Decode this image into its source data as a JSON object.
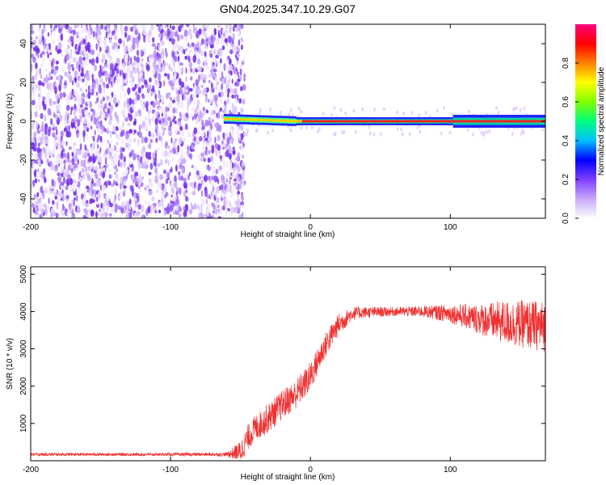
{
  "title": "GN04.2025.347.10.29.G07",
  "colors": {
    "snr_line": "#f03030",
    "axis": "#000000",
    "background": "#ffffff"
  },
  "chart_data": [
    {
      "type": "heatmap",
      "xlabel": "Height of straight line (km)",
      "ylabel": "Frequency (Hz)",
      "xlim": [
        -200,
        168
      ],
      "ylim": [
        -50,
        50
      ],
      "x_ticks": [
        -200,
        -100,
        0,
        100
      ],
      "y_ticks": [
        -40,
        -20,
        0,
        20,
        40
      ],
      "grid": false,
      "noise_region": {
        "x_start": -200,
        "x_end": -47
      },
      "signal_track": {
        "x_start": -62,
        "x_end": 168,
        "frequency": 0
      },
      "colorbar": {
        "label": "Normalized spectral amplitude",
        "range": [
          0,
          1
        ],
        "ticks": [
          0.0,
          0.2,
          0.4,
          0.6,
          0.8
        ],
        "tick_labels": [
          "0.0",
          "0.2",
          "0.4",
          "0.6",
          "0.8"
        ],
        "colormap": [
          "#ffffff",
          "#c8a8f8",
          "#7f3fff",
          "#0000ff",
          "#00c0ff",
          "#00ff80",
          "#80ff00",
          "#ffff00",
          "#ff8000",
          "#ff0000",
          "#ff0080"
        ]
      }
    },
    {
      "type": "line",
      "xlabel": "Height of straight line (km)",
      "ylabel": "SNR (10 * v/v)",
      "xlim": [
        -200,
        168
      ],
      "ylim": [
        0,
        5200
      ],
      "x_ticks": [
        -200,
        -100,
        0,
        100
      ],
      "y_ticks": [
        1000,
        2000,
        3000,
        4000,
        5000
      ],
      "grid": false,
      "series": [
        {
          "x": [
            -200,
            -150,
            -100,
            -60,
            -50,
            -45,
            -40,
            -30,
            -20,
            -10,
            0,
            10,
            20,
            30,
            40,
            60,
            80,
            100,
            120,
            140,
            168
          ],
          "values": [
            170,
            170,
            170,
            170,
            240,
            600,
            850,
            1150,
            1500,
            1800,
            2250,
            3050,
            3650,
            3950,
            3980,
            4000,
            4000,
            3950,
            3800,
            3700,
            3600
          ],
          "noise": [
            40,
            40,
            40,
            50,
            300,
            350,
            350,
            400,
            400,
            400,
            400,
            350,
            300,
            180,
            150,
            120,
            150,
            250,
            400,
            600,
            700
          ]
        }
      ]
    }
  ]
}
